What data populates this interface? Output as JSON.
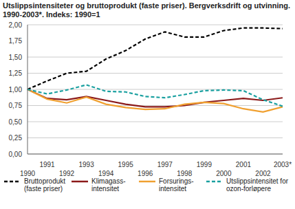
{
  "chart_data": {
    "type": "line",
    "title": "Utslippsintensiteter og bruttoprodukt (faste priser). Bergverksdrift og utvinning. 1990-2003*. Indeks: 1990=1",
    "categories": [
      "1990",
      "1991",
      "1992",
      "1993",
      "1994",
      "1995",
      "1996",
      "1997",
      "1998",
      "1999",
      "2000",
      "2001",
      "2002",
      "2003*"
    ],
    "series": [
      {
        "name": "Bruttoprodukt (faste priser)",
        "color": "#000000",
        "line_style": "dashed",
        "values": [
          1.0,
          1.13,
          1.25,
          1.28,
          1.47,
          1.6,
          1.78,
          1.89,
          1.81,
          1.81,
          1.91,
          1.95,
          1.95,
          1.94
        ]
      },
      {
        "name": "Klimagass-intensitet",
        "color": "#8b1a1a",
        "line_style": "solid",
        "values": [
          1.0,
          0.86,
          0.84,
          0.89,
          0.83,
          0.77,
          0.73,
          0.73,
          0.75,
          0.8,
          0.83,
          0.86,
          0.83,
          0.87
        ]
      },
      {
        "name": "Forsurings-intensitet",
        "color": "#f0a030",
        "line_style": "solid",
        "values": [
          1.0,
          0.85,
          0.79,
          0.88,
          0.77,
          0.72,
          0.69,
          0.7,
          0.77,
          0.8,
          0.78,
          0.7,
          0.65,
          0.73
        ]
      },
      {
        "name": "Utslippsintensitet for ozon-forløpere",
        "color": "#1aa0a0",
        "line_style": "dashed",
        "values": [
          1.0,
          0.93,
          0.99,
          1.07,
          0.97,
          0.96,
          0.89,
          0.87,
          0.92,
          0.98,
          0.99,
          0.98,
          0.84,
          0.74
        ]
      }
    ],
    "ylim": [
      0,
      2
    ],
    "yticks": [
      {
        "value": 0,
        "label": "0,00"
      },
      {
        "value": 0.25,
        "label": "0,25"
      },
      {
        "value": 0.5,
        "label": "0,50"
      },
      {
        "value": 0.75,
        "label": "0,75"
      },
      {
        "value": 1,
        "label": "1,00"
      },
      {
        "value": 1.25,
        "label": "1,25"
      },
      {
        "value": 1.5,
        "label": "1,50"
      },
      {
        "value": 1.75,
        "label": "1,75"
      },
      {
        "value": 2,
        "label": "2,00"
      }
    ],
    "grid": true,
    "legend": "bottom"
  }
}
